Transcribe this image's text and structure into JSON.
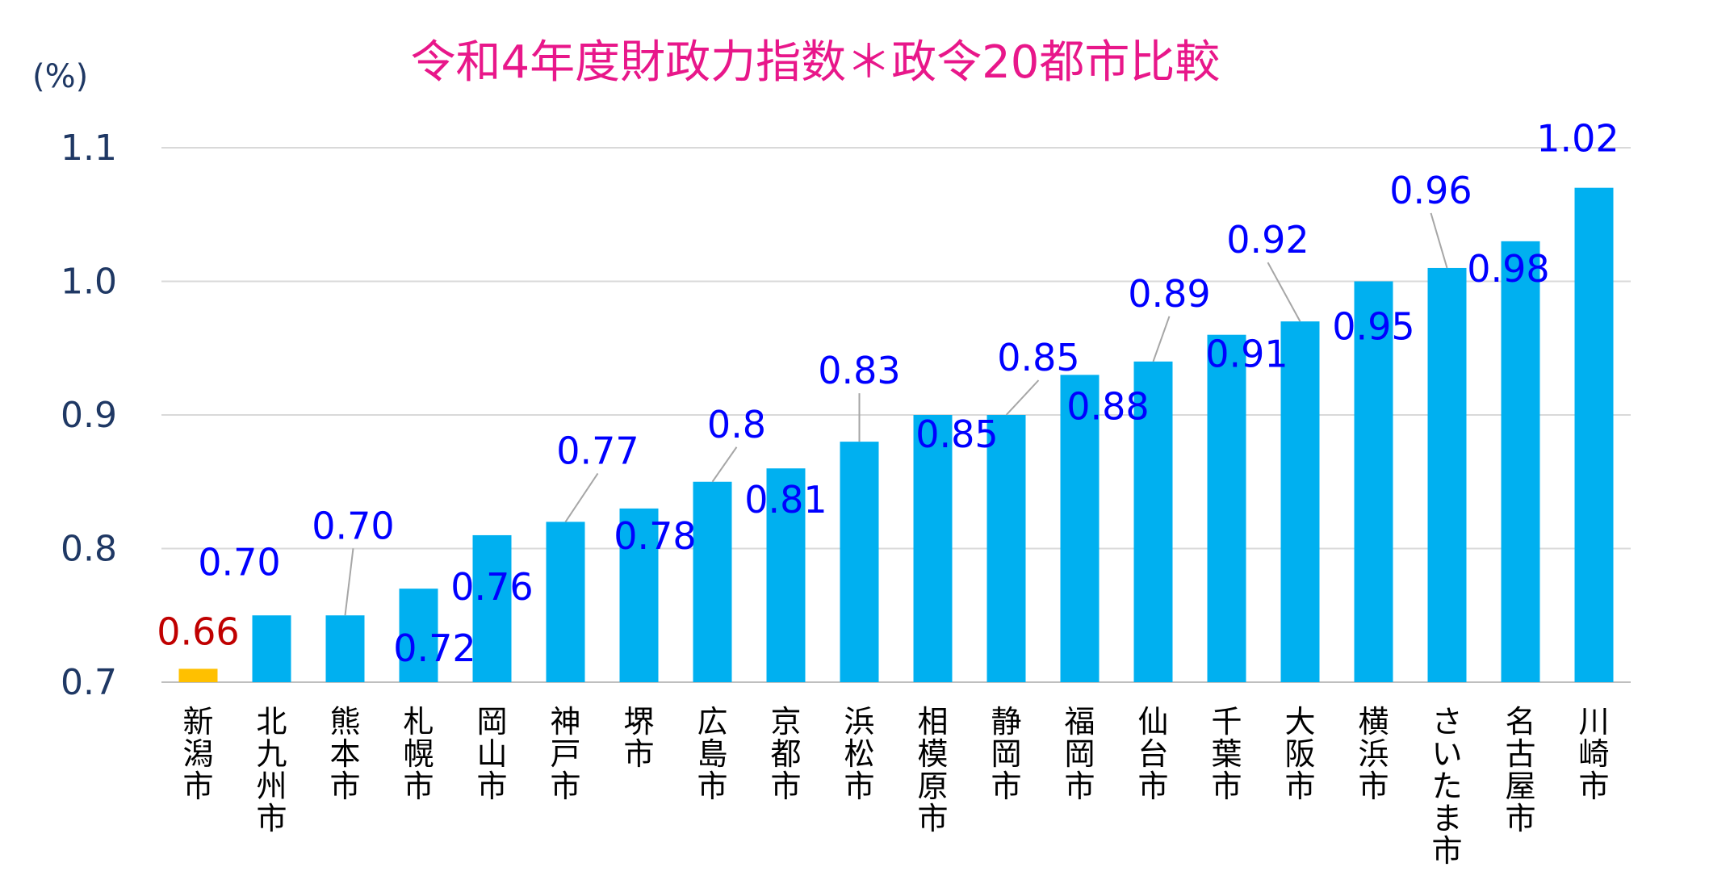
{
  "chart_data": {
    "type": "bar",
    "title": "令和4年度財政力指数＊政令20都市比較",
    "unit_label": "(%)",
    "ylim": [
      0.7,
      1.1
    ],
    "yticks": [
      "0.7",
      "0.8",
      "0.9",
      "1.0",
      "1.1"
    ],
    "grid": true,
    "categories": [
      "新潟市",
      "北九州市",
      "熊本市",
      "札幌市",
      "岡山市",
      "神戸市",
      "堺市",
      "広島市",
      "京都市",
      "浜松市",
      "相模原市",
      "静岡市",
      "福岡市",
      "仙台市",
      "千葉市",
      "大阪市",
      "横浜市",
      "さいたま市",
      "名古屋市",
      "川崎市"
    ],
    "values": [
      0.66,
      0.7,
      0.7,
      0.72,
      0.76,
      0.77,
      0.78,
      0.8,
      0.81,
      0.83,
      0.85,
      0.85,
      0.88,
      0.89,
      0.91,
      0.92,
      0.95,
      0.96,
      0.98,
      1.02
    ],
    "data_labels": [
      "0.66",
      "0.70",
      "0.70",
      "0.72",
      "0.76",
      "0.77",
      "0.78",
      "0.8",
      "0.81",
      "0.83",
      "0.85",
      "0.85",
      "0.88",
      "0.89",
      "0.91",
      "0.92",
      "0.95",
      "0.96",
      "0.98",
      "1.02"
    ],
    "highlight_index": 0,
    "colors": {
      "bar": "#00B0F0",
      "highlight_bar": "#FFC000",
      "label": "#0000FF",
      "highlight_label": "#C00000",
      "title": "#E8178A",
      "axis_text": "#1F3864",
      "grid": "#D9D9D9",
      "leader": "#A6A6A6"
    }
  }
}
